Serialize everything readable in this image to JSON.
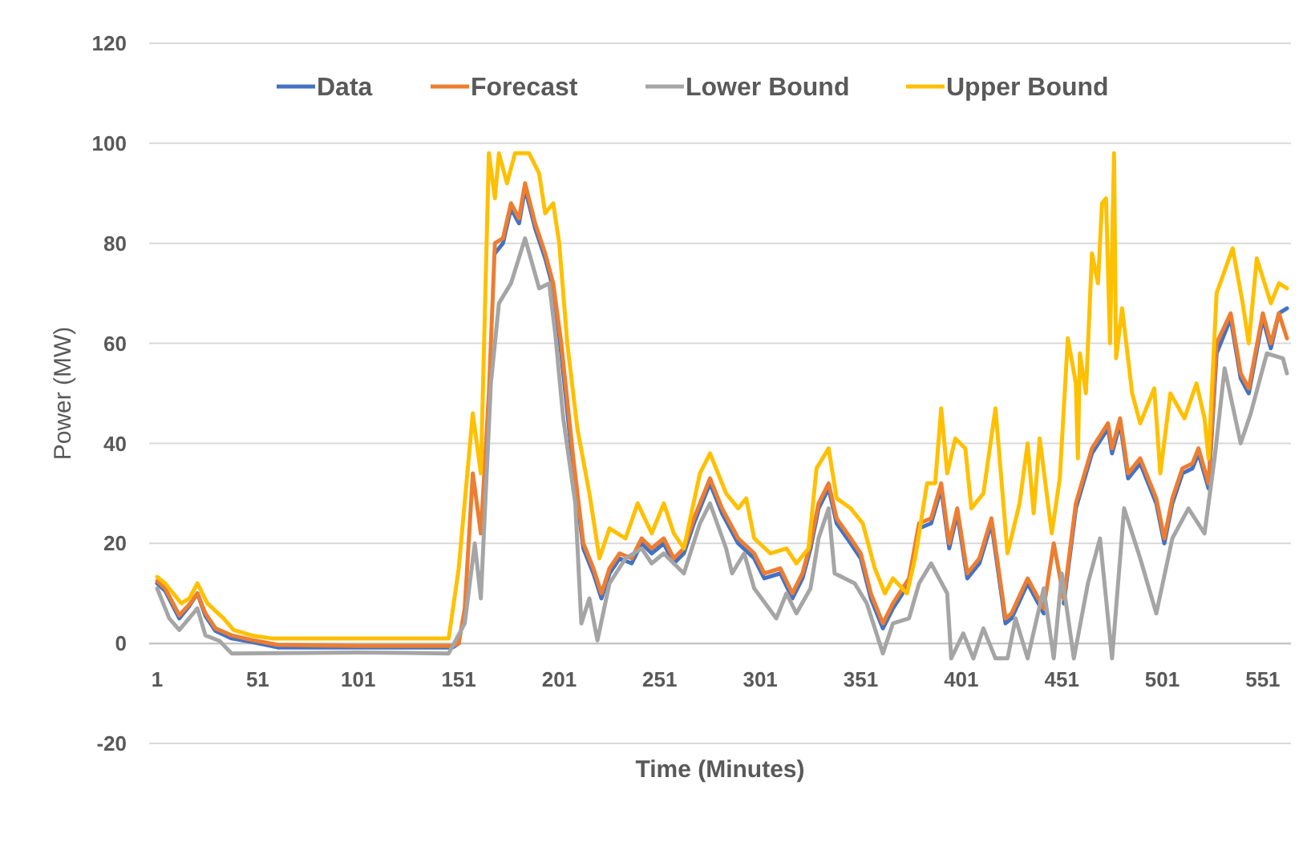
{
  "chart_data": {
    "type": "line",
    "xlabel": "Time (Minutes)",
    "ylabel": "Power (MW)",
    "xlim": [
      -3,
      565
    ],
    "xticks": [
      1,
      51,
      101,
      151,
      201,
      251,
      301,
      351,
      401,
      451,
      501,
      551
    ],
    "ylim": [
      -20,
      120
    ],
    "yticks": [
      -20,
      0,
      20,
      40,
      60,
      80,
      100,
      120
    ],
    "grid": "y",
    "legend": "top",
    "marker": "none",
    "line_style": "solid",
    "series": [
      {
        "name": "Data",
        "color": "#4472c4",
        "x": [
          1,
          5,
          12,
          17,
          21,
          25,
          30,
          38,
          48,
          61,
          101,
          148,
          151,
          154,
          158,
          162,
          166,
          169,
          173,
          177,
          181,
          184,
          189,
          194,
          198,
          202,
          208,
          213,
          218,
          222,
          226,
          231,
          237,
          242,
          247,
          253,
          258,
          263,
          268,
          276,
          282,
          290,
          298,
          303,
          311,
          317,
          322,
          326,
          330,
          335,
          339,
          346,
          351,
          356,
          362,
          367,
          375,
          380,
          386,
          391,
          395,
          399,
          404,
          410,
          416,
          423,
          426,
          434,
          442,
          447,
          452,
          458,
          466,
          474,
          476,
          480,
          484,
          490,
          498,
          502,
          506,
          511,
          516,
          519,
          524,
          528,
          535,
          540,
          544,
          551,
          555,
          559,
          563
        ],
        "values": [
          12,
          10.5,
          5,
          7.5,
          10,
          5.5,
          2.5,
          1,
          0.3,
          -0.8,
          -0.8,
          -0.8,
          0,
          null,
          null,
          null,
          null,
          78,
          80,
          87,
          84,
          91,
          83,
          77,
          71,
          58,
          35,
          19,
          14,
          9,
          14,
          17,
          16,
          20,
          18,
          20,
          16,
          18,
          24,
          32,
          26,
          20,
          17,
          13,
          14,
          9,
          13,
          19,
          27,
          31,
          24,
          20,
          17,
          9,
          3,
          7,
          12,
          23,
          24,
          31,
          19,
          26,
          13,
          16,
          24,
          4,
          5,
          12,
          6,
          null,
          8,
          27,
          38,
          43,
          38,
          44,
          33,
          36,
          28,
          20,
          28,
          34,
          35,
          38,
          31,
          58,
          65,
          53,
          50,
          65,
          59,
          66,
          67
        ]
      },
      {
        "name": "Forecast",
        "color": "#ed7d31",
        "x": [
          1,
          5,
          12,
          17,
          21,
          25,
          30,
          38,
          48,
          61,
          101,
          148,
          151,
          154,
          158,
          162,
          166,
          169,
          173,
          177,
          181,
          184,
          189,
          194,
          198,
          202,
          208,
          213,
          218,
          222,
          226,
          231,
          237,
          242,
          247,
          253,
          258,
          263,
          268,
          276,
          282,
          290,
          298,
          303,
          311,
          317,
          322,
          326,
          330,
          335,
          339,
          346,
          351,
          356,
          362,
          367,
          375,
          380,
          386,
          391,
          395,
          399,
          404,
          410,
          416,
          423,
          426,
          434,
          442,
          447,
          452,
          458,
          466,
          474,
          476,
          480,
          484,
          490,
          498,
          502,
          506,
          511,
          516,
          519,
          524,
          528,
          535,
          540,
          544,
          551,
          555,
          559,
          563
        ],
        "values": [
          12.5,
          11,
          5.6,
          7.8,
          10,
          6,
          3,
          1.6,
          0.7,
          -0.3,
          -0.5,
          -0.5,
          0,
          7,
          34,
          22,
          50,
          80,
          81,
          88,
          85,
          92,
          84,
          78,
          72,
          60,
          37,
          20,
          15,
          10,
          15,
          18,
          17,
          21,
          19,
          21,
          17,
          19,
          25,
          33,
          27,
          21,
          18,
          14,
          15,
          10,
          14,
          20,
          28,
          32,
          25,
          21,
          18,
          10,
          4,
          8,
          13,
          24,
          25,
          32,
          20,
          27,
          14,
          17,
          25,
          5,
          6,
          13,
          7,
          20,
          9,
          28,
          39,
          44,
          39,
          45,
          34,
          37,
          29,
          21,
          29,
          35,
          36,
          39,
          32,
          60,
          66,
          54,
          51,
          66,
          60,
          66,
          61
        ]
      },
      {
        "name": "Lower Bound",
        "color": "#a5a5a5",
        "x": [
          1,
          7,
          12,
          21,
          25,
          32,
          38,
          101,
          146,
          154,
          159,
          162,
          167,
          171,
          177,
          184,
          191,
          196,
          199,
          203,
          209,
          212,
          216,
          220,
          226,
          234,
          242,
          247,
          253,
          263,
          271,
          276,
          284,
          287,
          293,
          298,
          309,
          314,
          319,
          326,
          330,
          335,
          338,
          343,
          348,
          354,
          362,
          367,
          375,
          380,
          386,
          394,
          396,
          402,
          407,
          412,
          418,
          424,
          428,
          434,
          442,
          447,
          451,
          457,
          464,
          470,
          476,
          482,
          490,
          498,
          506,
          514,
          522,
          527,
          532,
          540,
          545,
          553,
          561,
          563
        ],
        "values": [
          11,
          5,
          2.7,
          7,
          1.6,
          0.5,
          -2,
          -1.8,
          -2,
          4,
          20,
          9,
          52,
          68,
          72,
          81,
          71,
          72,
          62,
          45,
          28,
          4,
          9,
          0.6,
          12,
          17,
          19,
          16,
          18,
          14,
          24,
          28,
          19,
          14,
          18,
          11,
          5,
          10,
          6,
          11,
          21,
          27,
          14,
          13,
          12,
          8,
          -2,
          4,
          5,
          12,
          16,
          10,
          -3,
          2,
          -3,
          3,
          -3,
          -3,
          5,
          -3,
          11,
          -3,
          14,
          -3,
          12,
          21,
          -3,
          27,
          17,
          6,
          21,
          27,
          22,
          37,
          55,
          40,
          46,
          58,
          57,
          54
        ]
      },
      {
        "name": "Upper Bound",
        "color": "#ffc000",
        "x": [
          1,
          5,
          13,
          17,
          21,
          26,
          34,
          39,
          48,
          58,
          101,
          146,
          151,
          158,
          162,
          166,
          169,
          171,
          175,
          179,
          186,
          191,
          194,
          198,
          201,
          205,
          210,
          216,
          221,
          226,
          234,
          240,
          247,
          253,
          258,
          263,
          271,
          276,
          284,
          290,
          294,
          298,
          306,
          314,
          319,
          325,
          329,
          335,
          339,
          346,
          352,
          358,
          363,
          367,
          374,
          378,
          384,
          388,
          391,
          394,
          398,
          403,
          406,
          412,
          418,
          424,
          430,
          434,
          437,
          440,
          446,
          450,
          454,
          458,
          459,
          460,
          463,
          466,
          469,
          471,
          473,
          475,
          477,
          478,
          481,
          486,
          490,
          497,
          500,
          505,
          512,
          518,
          522,
          524,
          528,
          536,
          541,
          544,
          548,
          555,
          559,
          563
        ],
        "values": [
          13.3,
          12,
          8,
          9,
          12,
          8,
          5,
          2.7,
          1.6,
          1,
          1,
          1,
          15,
          46,
          34,
          98,
          89,
          98,
          92,
          98,
          98,
          94,
          86,
          88,
          80,
          60,
          43,
          30,
          17,
          23,
          21,
          28,
          22,
          28,
          22,
          19,
          34,
          38,
          30,
          27,
          29,
          21,
          18,
          19,
          16,
          19,
          35,
          39,
          29,
          27,
          24,
          15,
          10,
          13,
          10,
          17,
          32,
          32,
          47,
          34,
          41,
          39,
          27,
          30,
          47,
          18,
          28,
          40,
          26,
          41,
          22,
          33,
          61,
          52,
          37,
          58,
          50,
          78,
          72,
          88,
          89,
          60,
          98,
          57,
          67,
          50,
          44,
          51,
          34,
          50,
          45,
          52,
          45,
          37,
          70,
          79,
          68,
          60,
          77,
          68,
          72,
          71
        ]
      }
    ]
  }
}
